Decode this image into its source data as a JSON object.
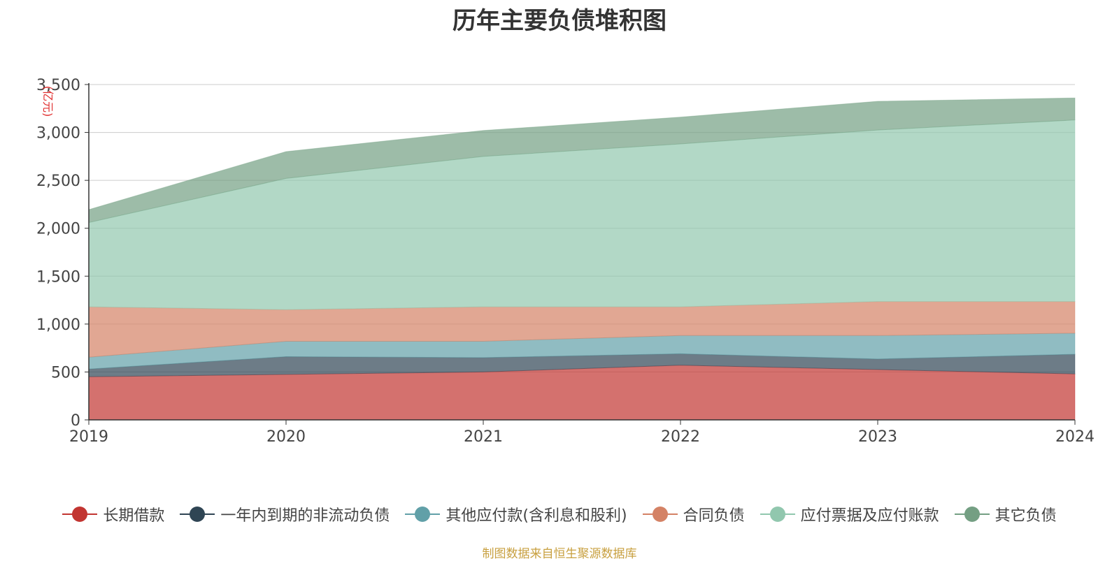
{
  "chart_data": {
    "type": "area",
    "stacked": true,
    "title": "历年主要负债堆积图",
    "ylabel": "(亿元)",
    "xlabel": "",
    "categories": [
      "2019",
      "2020",
      "2021",
      "2022",
      "2023",
      "2024"
    ],
    "ylim": [
      0,
      3500
    ],
    "yticks": [
      0,
      500,
      1000,
      1500,
      2000,
      2500,
      3000,
      3500
    ],
    "ytick_labels": [
      "0",
      "500",
      "1,000",
      "1,500",
      "2,000",
      "2,500",
      "3,000",
      "3,500"
    ],
    "grid": true,
    "legend_position": "bottom",
    "series": [
      {
        "name": "长期借款",
        "color": "#c23531",
        "values": [
          450,
          475,
          500,
          570,
          525,
          480
        ]
      },
      {
        "name": "一年内到期的非流动负债",
        "color": "#2f4554",
        "values": [
          80,
          185,
          150,
          120,
          110,
          205
        ]
      },
      {
        "name": "其他应付款(含利息和股利)",
        "color": "#61a0a8",
        "values": [
          125,
          160,
          170,
          190,
          245,
          220
        ]
      },
      {
        "name": "合同负债",
        "color": "#d48265",
        "values": [
          525,
          330,
          360,
          300,
          355,
          330
        ]
      },
      {
        "name": "应付票据及应付账款",
        "color": "#91c7ae",
        "values": [
          880,
          1370,
          1570,
          1700,
          1790,
          1895
        ]
      },
      {
        "name": "其它负债",
        "color": "#749f83",
        "values": [
          135,
          280,
          270,
          280,
          300,
          230
        ]
      }
    ]
  },
  "source_note": "制图数据来自恒生聚源数据库"
}
